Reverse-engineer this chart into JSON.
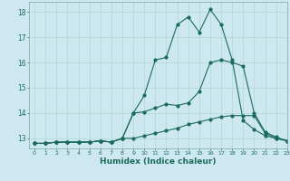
{
  "title": "",
  "xlabel": "Humidex (Indice chaleur)",
  "bg_color": "#cde8f0",
  "line_color": "#1a6b5a",
  "grid_color": "#b0d8d0",
  "xlim": [
    -0.5,
    23
  ],
  "ylim": [
    12.6,
    18.4
  ],
  "yticks": [
    13,
    14,
    15,
    16,
    17,
    18
  ],
  "xticks": [
    0,
    1,
    2,
    3,
    4,
    5,
    6,
    7,
    8,
    9,
    10,
    11,
    12,
    13,
    14,
    15,
    16,
    17,
    18,
    19,
    20,
    21,
    22,
    23
  ],
  "series1_y": [
    12.8,
    12.8,
    12.85,
    12.85,
    12.85,
    12.85,
    12.9,
    12.85,
    13.0,
    14.0,
    14.05,
    14.2,
    14.35,
    14.3,
    14.4,
    14.85,
    16.0,
    16.1,
    16.0,
    15.85,
    14.0,
    13.25,
    13.05,
    12.9
  ],
  "series2_y": [
    12.8,
    12.8,
    12.85,
    12.85,
    12.85,
    12.85,
    12.9,
    12.85,
    13.0,
    14.0,
    14.7,
    16.1,
    16.2,
    17.5,
    17.8,
    17.2,
    18.1,
    17.5,
    16.1,
    13.7,
    13.35,
    13.1,
    13.0,
    12.9
  ],
  "series3_y": [
    12.8,
    12.8,
    12.85,
    12.85,
    12.85,
    12.85,
    12.9,
    12.85,
    13.0,
    13.0,
    13.1,
    13.2,
    13.3,
    13.4,
    13.55,
    13.65,
    13.75,
    13.85,
    13.9,
    13.9,
    13.9,
    13.2,
    13.0,
    12.9
  ]
}
